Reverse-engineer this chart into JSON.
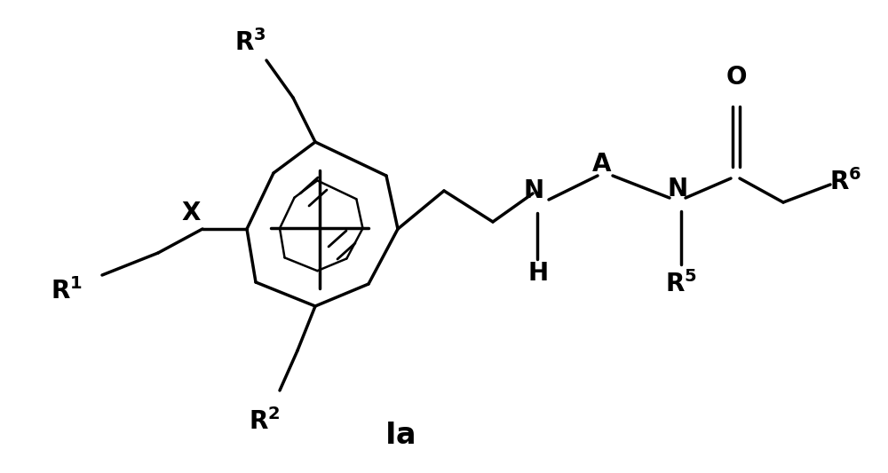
{
  "background_color": "#ffffff",
  "fig_width": 10.0,
  "fig_height": 5.33,
  "dpi": 100
}
